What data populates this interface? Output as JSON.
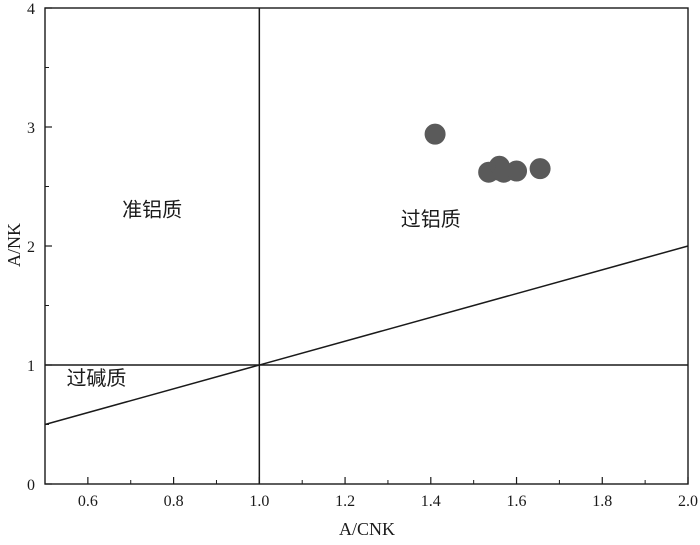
{
  "chart_data": {
    "type": "scatter",
    "xlabel": "A/CNK",
    "ylabel": "A/NK",
    "xlim": [
      0.5,
      2.0
    ],
    "ylim": [
      0,
      4
    ],
    "x_ticks": [
      0.6,
      0.8,
      1.0,
      1.2,
      1.4,
      1.6,
      1.8,
      2.0
    ],
    "x_tick_labels": [
      "0.6",
      "0.8",
      "1.0",
      "1.2",
      "1.4",
      "1.6",
      "1.8",
      "2.0"
    ],
    "y_ticks": [
      0,
      1,
      2,
      3,
      4
    ],
    "y_tick_labels": [
      "0",
      "1",
      "2",
      "3",
      "4"
    ],
    "grid": false,
    "series": [
      {
        "x": [
          1.41,
          1.535,
          1.555,
          1.56,
          1.57,
          1.6,
          1.655
        ],
        "y": [
          2.94,
          2.62,
          2.64,
          2.67,
          2.62,
          2.63,
          2.65
        ]
      }
    ],
    "marker_color": "#5a5a5a",
    "boundary_lines": [
      {
        "x": [
          1.0,
          1.0
        ],
        "y": [
          0,
          4
        ]
      },
      {
        "x": [
          0.5,
          2.0
        ],
        "y": [
          1,
          1
        ]
      },
      {
        "x": [
          0.5,
          2.0
        ],
        "y": [
          0.5,
          2.0
        ]
      }
    ],
    "annotations": [
      {
        "text": "准铝质",
        "x": 0.75,
        "y": 2.25
      },
      {
        "text": "过铝质",
        "x": 1.4,
        "y": 2.17
      },
      {
        "text": "过碱质",
        "x": 0.62,
        "y": 0.83
      }
    ]
  }
}
